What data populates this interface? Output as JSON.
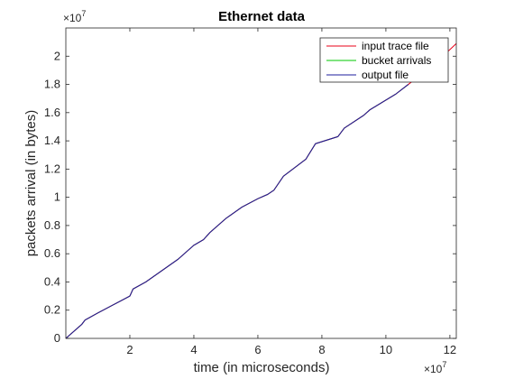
{
  "chart_data": {
    "type": "line",
    "title": "Ethernet data",
    "xlabel": "time (in microseconds)",
    "ylabel": "packets arrival (in bytes)",
    "xlim": [
      0,
      12.2
    ],
    "ylim": [
      0,
      2.2
    ],
    "x_scale_label": "×10",
    "x_scale_exp": "7",
    "y_scale_label": "×10",
    "y_scale_exp": "7",
    "x_ticks": [
      2,
      4,
      6,
      8,
      10,
      12
    ],
    "x_tick_labels": [
      "2",
      "4",
      "6",
      "8",
      "10",
      "12"
    ],
    "y_ticks": [
      0,
      0.2,
      0.4,
      0.6,
      0.8,
      1,
      1.2,
      1.4,
      1.6,
      1.8,
      2
    ],
    "y_tick_labels": [
      "0",
      "0.2",
      "0.4",
      "0.6",
      "0.8",
      "1",
      "1.2",
      "1.4",
      "1.6",
      "1.8",
      "2"
    ],
    "grid": false,
    "legend_position": "top-right",
    "series": [
      {
        "name": "input trace file",
        "color": "#e8001a",
        "x": [
          0,
          0.5,
          0.6,
          1,
          1.5,
          2,
          2.1,
          2.5,
          3,
          3.5,
          4,
          4.3,
          4.5,
          5,
          5.5,
          6,
          6.3,
          6.5,
          6.8,
          7.5,
          7.8,
          8.5,
          8.7,
          9.3,
          9.5,
          10.3,
          10.7,
          11.5,
          12.2
        ],
        "y": [
          0,
          0.1,
          0.13,
          0.18,
          0.24,
          0.3,
          0.35,
          0.4,
          0.48,
          0.56,
          0.66,
          0.7,
          0.75,
          0.85,
          0.93,
          0.99,
          1.02,
          1.05,
          1.15,
          1.27,
          1.38,
          1.43,
          1.49,
          1.58,
          1.62,
          1.73,
          1.8,
          1.94,
          2.09
        ]
      },
      {
        "name": "bucket arrivals",
        "color": "#00c800",
        "x": [
          0,
          0.5,
          0.6,
          1,
          1.5,
          2,
          2.1,
          2.5,
          3,
          3.5,
          4,
          4.3,
          4.5,
          5,
          5.5,
          6,
          6.3,
          6.5,
          6.8,
          7.5,
          7.8,
          8.5,
          8.7,
          9.3,
          9.5,
          10.3,
          10.7
        ],
        "y": [
          0,
          0.1,
          0.13,
          0.18,
          0.24,
          0.3,
          0.35,
          0.4,
          0.48,
          0.56,
          0.66,
          0.7,
          0.75,
          0.85,
          0.93,
          0.99,
          1.02,
          1.05,
          1.15,
          1.27,
          1.38,
          1.43,
          1.49,
          1.58,
          1.62,
          1.73,
          1.8
        ]
      },
      {
        "name": "output file",
        "color": "#1e1e9c",
        "x": [
          0,
          0.5,
          0.6,
          1,
          1.5,
          2,
          2.1,
          2.5,
          3,
          3.5,
          4,
          4.3,
          4.5,
          5,
          5.5,
          6,
          6.3,
          6.5,
          6.8,
          7.5,
          7.8,
          8.5,
          8.7,
          9.3,
          9.5,
          10.3,
          10.7
        ],
        "y": [
          0,
          0.1,
          0.13,
          0.18,
          0.24,
          0.3,
          0.35,
          0.4,
          0.48,
          0.56,
          0.66,
          0.7,
          0.75,
          0.85,
          0.93,
          0.99,
          1.02,
          1.05,
          1.15,
          1.27,
          1.38,
          1.43,
          1.49,
          1.58,
          1.62,
          1.73,
          1.8
        ]
      }
    ]
  }
}
